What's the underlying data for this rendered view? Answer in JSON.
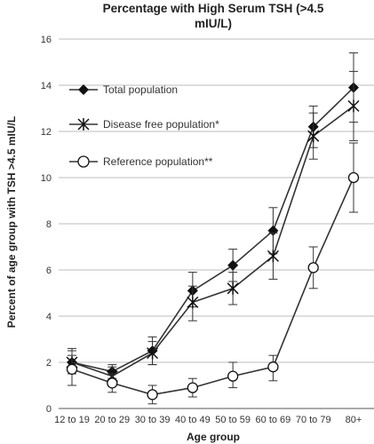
{
  "chart_data": {
    "type": "line",
    "title_lines": [
      "Percentage with High Serum TSH (>4.5",
      "mIU/L)"
    ],
    "xlabel": "Age group",
    "ylabel": "Percent of age group with TSH >4.5 mIU/L",
    "categories": [
      "12 to 19",
      "20 to 29",
      "30 to 39",
      "40 to 49",
      "50 to 59",
      "60 to 69",
      "70 to 79",
      "80+"
    ],
    "ylim": [
      0,
      16
    ],
    "yticks": [
      "0",
      "2",
      "4",
      "6",
      "8",
      "10",
      "12",
      "14",
      "16"
    ],
    "grid": true,
    "legend_position": "upper-left",
    "series": [
      {
        "name": "Total population",
        "marker": "diamond",
        "color": "#333333",
        "values": [
          2.0,
          1.6,
          2.5,
          5.1,
          6.2,
          7.7,
          12.2,
          13.9
        ],
        "error_low": [
          1.5,
          1.3,
          1.9,
          4.4,
          5.5,
          6.7,
          11.3,
          12.4
        ],
        "error_high": [
          2.6,
          1.9,
          3.1,
          5.9,
          6.9,
          8.7,
          13.1,
          15.4
        ]
      },
      {
        "name": "Disease free population*",
        "marker": "star",
        "color": "#333333",
        "values": [
          2.0,
          1.4,
          2.4,
          4.6,
          5.2,
          6.6,
          11.8,
          13.1
        ],
        "error_low": [
          1.5,
          1.1,
          1.9,
          3.8,
          4.5,
          5.6,
          10.8,
          11.6
        ],
        "error_high": [
          2.5,
          1.8,
          2.9,
          5.3,
          5.9,
          7.6,
          12.8,
          14.6
        ]
      },
      {
        "name": "Reference population**",
        "marker": "circle",
        "color": "#333333",
        "values": [
          1.7,
          1.1,
          0.6,
          0.9,
          1.4,
          1.8,
          6.1,
          10.0
        ],
        "error_low": [
          1.0,
          0.7,
          0.2,
          0.5,
          0.9,
          1.2,
          5.2,
          8.5
        ],
        "error_high": [
          2.3,
          1.5,
          1.0,
          1.3,
          2.0,
          2.3,
          7.0,
          11.5
        ]
      }
    ]
  }
}
